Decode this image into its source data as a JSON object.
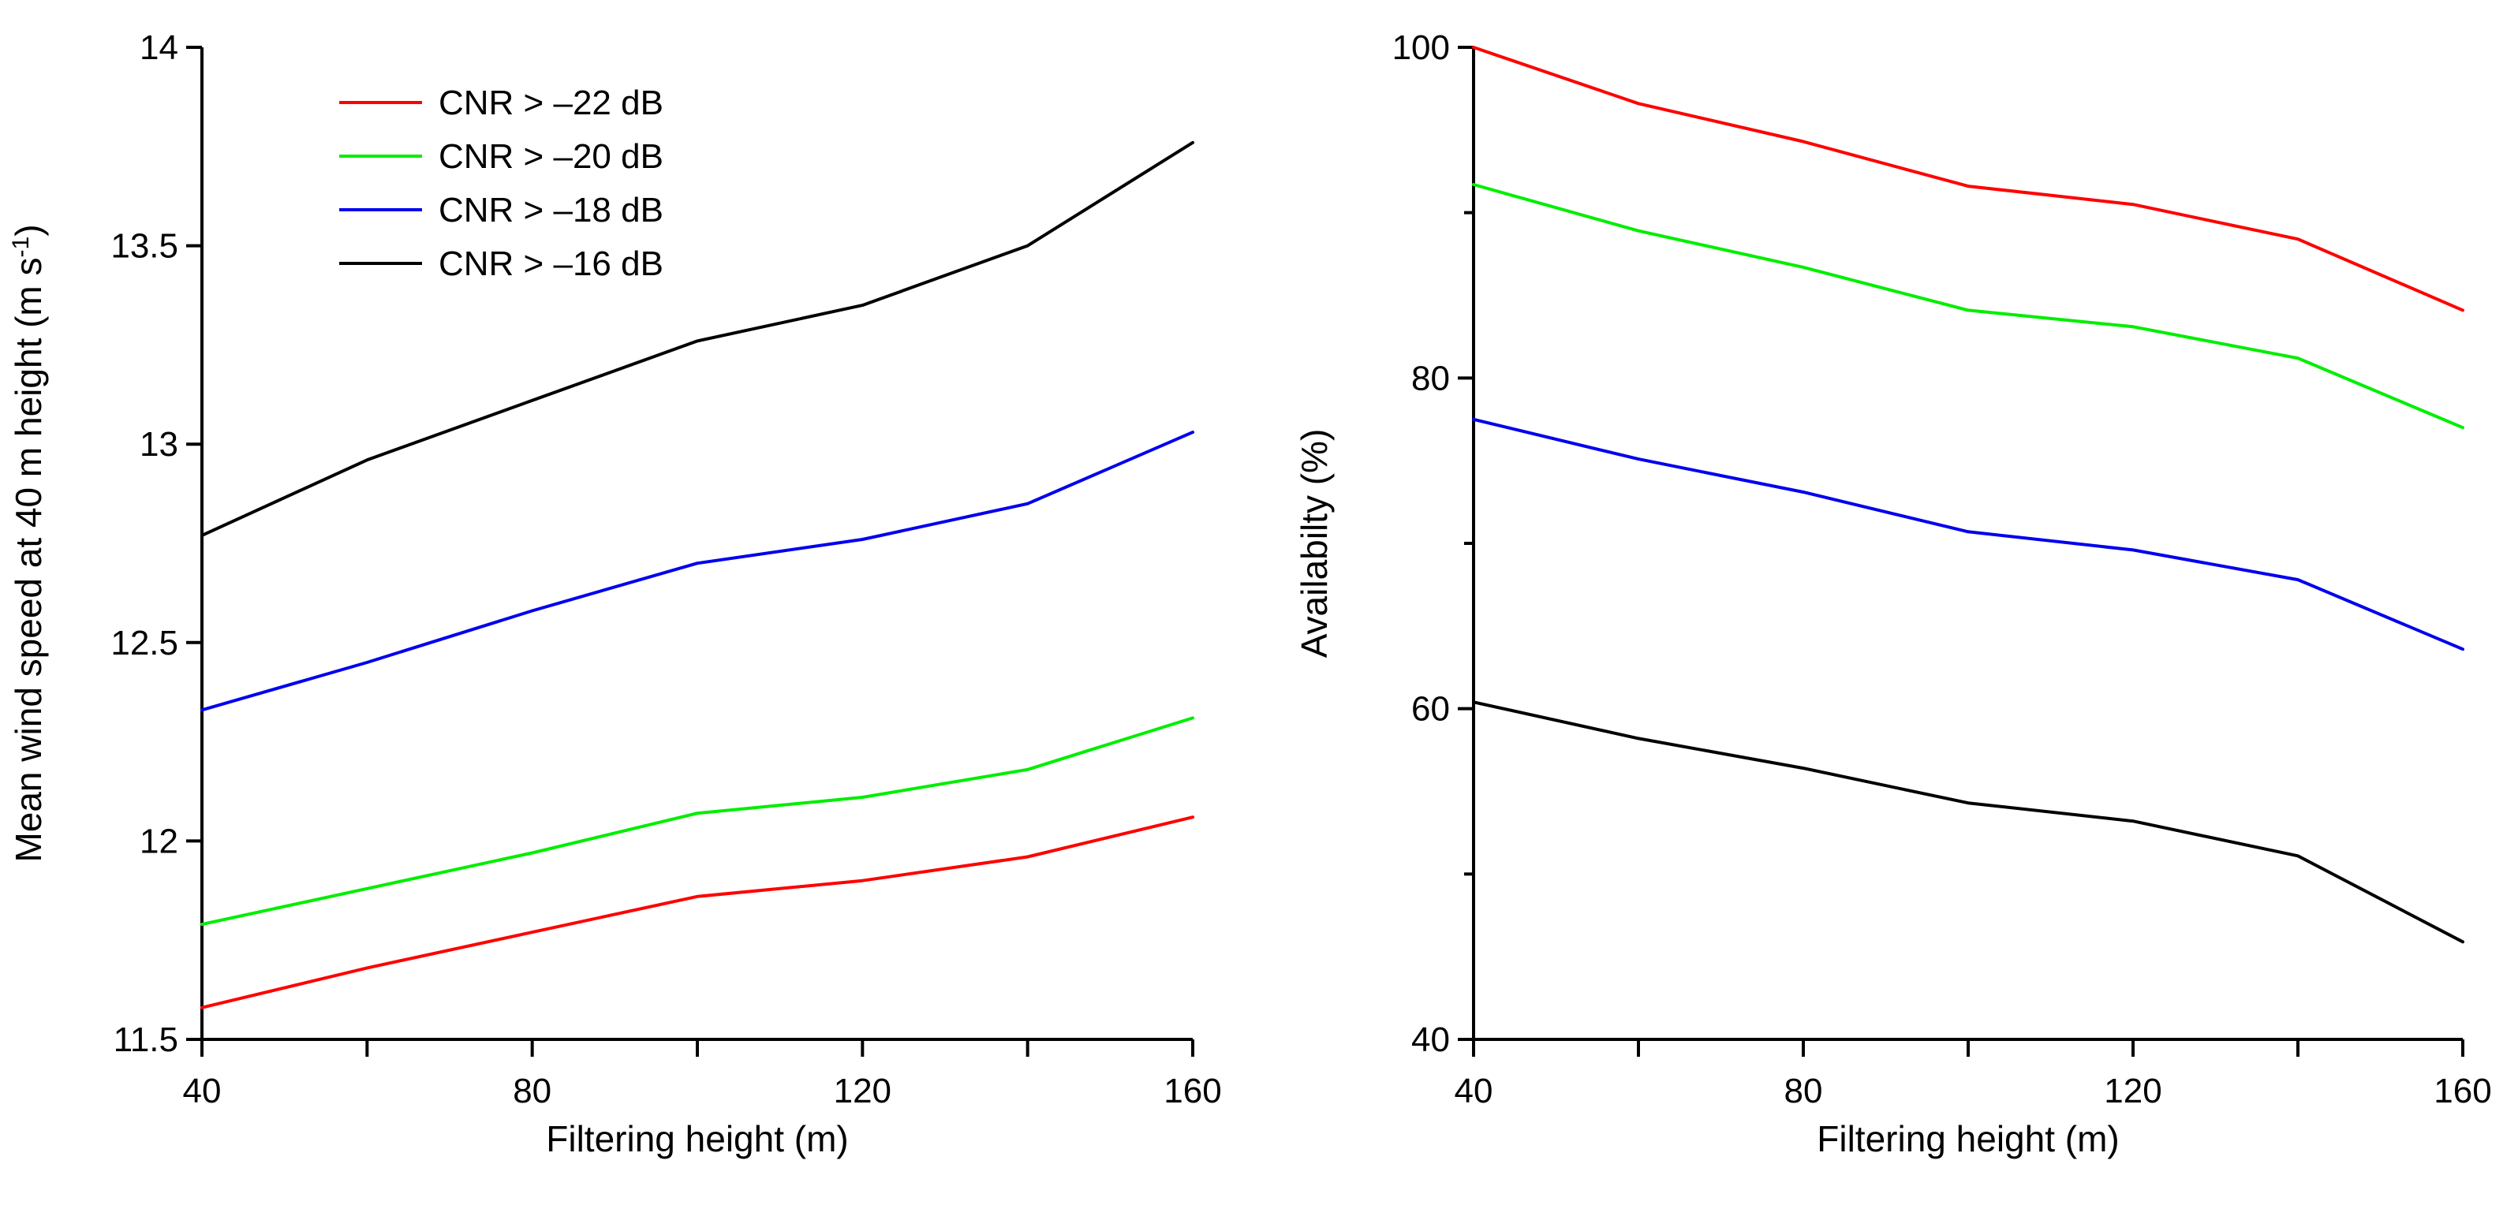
{
  "chart_data": [
    {
      "type": "line",
      "xlabel": "Filtering height (m)",
      "ylabel": "Mean wind speed at 40 m height (m s",
      "ylabel_sup": "-1",
      "ylabel_close": ")",
      "x": [
        40,
        60,
        80,
        100,
        120,
        140,
        160
      ],
      "xticks": [
        40,
        80,
        120,
        160
      ],
      "xtick_labels": [
        "40",
        "80",
        "120",
        "160"
      ],
      "xminor": [
        60,
        100,
        140
      ],
      "xlim": [
        40,
        160
      ],
      "ylim": [
        11.5,
        14
      ],
      "yticks": [
        11.5,
        12,
        12.5,
        13,
        13.5,
        14
      ],
      "ytick_labels": [
        "11.5",
        "12",
        "12.5",
        "13",
        "13.5",
        "14"
      ],
      "legend": "top-left",
      "series": [
        {
          "name": "CNR > –22 dB",
          "color": "#ff0000",
          "values": [
            11.58,
            11.68,
            11.77,
            11.86,
            11.9,
            11.96,
            12.06
          ]
        },
        {
          "name": "CNR > –20 dB",
          "color": "#00ee00",
          "values": [
            11.79,
            11.88,
            11.97,
            12.07,
            12.11,
            12.18,
            12.31
          ]
        },
        {
          "name": "CNR > –18 dB",
          "color": "#0000ee",
          "values": [
            12.33,
            12.45,
            12.58,
            12.7,
            12.76,
            12.85,
            13.03
          ]
        },
        {
          "name": "CNR > –16 dB",
          "color": "#000000",
          "values": [
            12.77,
            12.96,
            13.11,
            13.26,
            13.35,
            13.5,
            13.76
          ]
        }
      ]
    },
    {
      "type": "line",
      "xlabel": "Filtering height (m)",
      "ylabel": "Availabilty (%)",
      "x": [
        40,
        60,
        80,
        100,
        120,
        140,
        160
      ],
      "xticks": [
        40,
        80,
        120,
        160
      ],
      "xtick_labels": [
        "40",
        "80",
        "120",
        "160"
      ],
      "xminor": [
        60,
        100,
        140
      ],
      "xlim": [
        40,
        160
      ],
      "ylim": [
        40,
        100
      ],
      "yticks": [
        40,
        60,
        80,
        100
      ],
      "ytick_labels": [
        "40",
        "60",
        "80",
        "100"
      ],
      "yminor": [
        50,
        70,
        90
      ],
      "series": [
        {
          "name": "CNR > –22 dB",
          "color": "#ff0000",
          "values": [
            100,
            96.6,
            94.3,
            91.6,
            90.5,
            88.4,
            84.1
          ]
        },
        {
          "name": "CNR > –20 dB",
          "color": "#00ee00",
          "values": [
            91.7,
            88.9,
            86.7,
            84.1,
            83.1,
            81.2,
            77.0
          ]
        },
        {
          "name": "CNR > –18 dB",
          "color": "#0000ee",
          "values": [
            77.5,
            75.1,
            73.1,
            70.7,
            69.6,
            67.8,
            63.6
          ]
        },
        {
          "name": "CNR > –16 dB",
          "color": "#000000",
          "values": [
            60.4,
            58.2,
            56.4,
            54.3,
            53.2,
            51.1,
            45.9
          ]
        }
      ]
    }
  ]
}
